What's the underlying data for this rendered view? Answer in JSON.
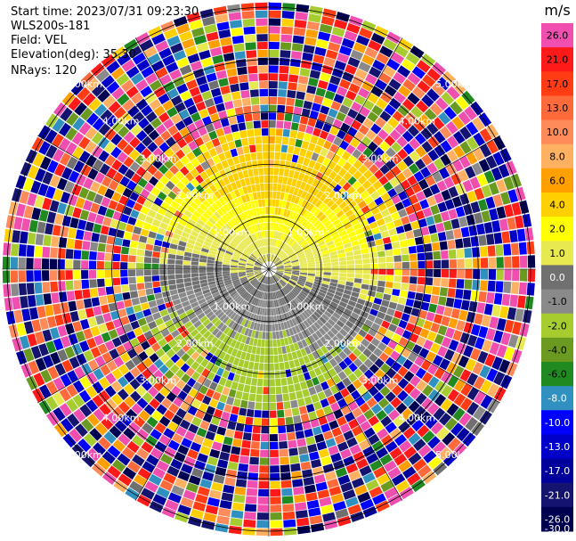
{
  "header": {
    "start_time": "Start time: 2023/07/31 09:23:30",
    "site": "WLS200s-181",
    "field": "Field: VEL",
    "elevation": "Elevation(deg): 35.30",
    "nrays": "NRays: 120"
  },
  "chart_data": {
    "type": "ppi",
    "field": "VEL",
    "n_rays": 120,
    "range_rings_km": [
      1.0,
      2.0,
      3.0,
      4.0,
      5.0
    ],
    "ring_labels": {
      "1.0": [
        "1.00km",
        "1.00km",
        "1.00km",
        "1.00km"
      ],
      "2.0": [
        "2.00km",
        "2.00km",
        "2.00km",
        "2.00km"
      ],
      "3.0": [
        "3.00km",
        "3.00km",
        "3.00km",
        "3.00km"
      ],
      "4.0": [
        "4.00km",
        "4.00km",
        "4.00km",
        "4.00km"
      ],
      "5.0": [
        "5.00km",
        "5.00km",
        "5.00km",
        "5.00km"
      ]
    },
    "max_range_km": 5.1,
    "colorbar": {
      "unit": "m/s",
      "ticks": [
        "26.0",
        "21.0",
        "17.0",
        "13.0",
        "10.0",
        "8.0",
        "6.0",
        "4.0",
        "2.0",
        "1.0",
        "0.0",
        "-1.0",
        "-2.0",
        "-4.0",
        "-6.0",
        "-8.0",
        "-10.0",
        "-13.0",
        "-17.0",
        "-21.0",
        "-26.0",
        "-30.0"
      ],
      "colors": [
        "#f04fb0",
        "#ff1a1a",
        "#ff3c14",
        "#ff6a3a",
        "#ff8a5a",
        "#ffb060",
        "#ffa000",
        "#ffd000",
        "#ffff00",
        "#e8e850",
        "#707070",
        "#8a8a8a",
        "#a6cc30",
        "#6a9a20",
        "#208a20",
        "#3090c0",
        "#0000ff",
        "#0000c8",
        "#00009a",
        "#141470",
        "#000050"
      ]
    }
  }
}
